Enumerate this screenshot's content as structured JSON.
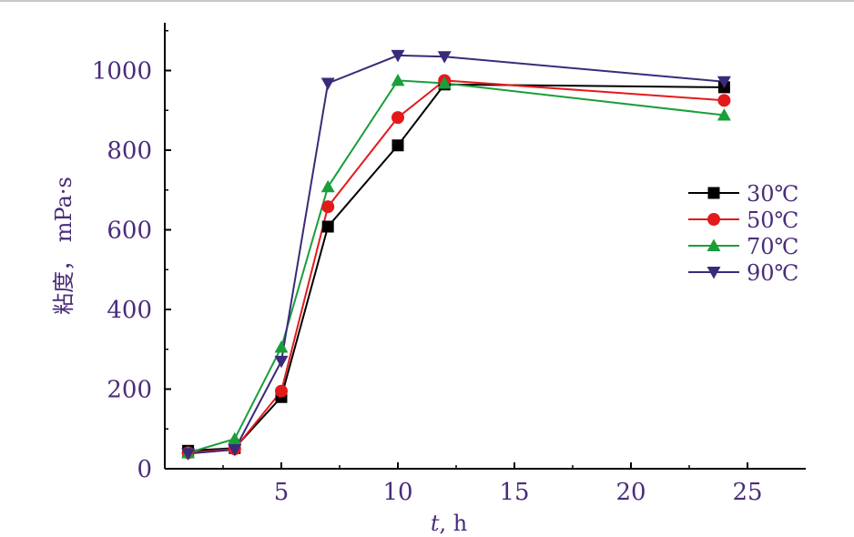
{
  "chart_data": {
    "type": "line",
    "xlabel": "t, h",
    "xlabel_italic": "t",
    "xlabel_rest": ", h",
    "ylabel": "粘度， mPa·s",
    "xlim": [
      0,
      27.5
    ],
    "ylim": [
      0,
      1120
    ],
    "xticks": [
      5,
      10,
      15,
      20,
      25
    ],
    "xtick_labels": [
      "5",
      "10",
      "15",
      "20",
      "25"
    ],
    "yticks": [
      0,
      200,
      400,
      600,
      800,
      1000
    ],
    "ytick_labels": [
      "0",
      "200",
      "400",
      "600",
      "800",
      "1000"
    ],
    "grid": false,
    "legend_position": "right",
    "series": [
      {
        "name": "30℃",
        "color": "#000000",
        "marker": "square",
        "x": [
          1,
          3,
          5,
          7,
          10,
          12,
          24
        ],
        "y": [
          45,
          52,
          180,
          608,
          812,
          965,
          958
        ]
      },
      {
        "name": "50℃",
        "color": "#e31a1c",
        "marker": "circle",
        "x": [
          1,
          3,
          5,
          7,
          10,
          12,
          24
        ],
        "y": [
          40,
          50,
          195,
          658,
          882,
          975,
          925
        ]
      },
      {
        "name": "70℃",
        "color": "#1a9e3a",
        "marker": "triangle-up",
        "x": [
          1,
          3,
          5,
          7,
          10,
          12,
          24
        ],
        "y": [
          40,
          75,
          305,
          708,
          975,
          968,
          888
        ]
      },
      {
        "name": "90℃",
        "color": "#3b2a7a",
        "marker": "triangle-down",
        "x": [
          1,
          3,
          5,
          7,
          10,
          12,
          24
        ],
        "y": [
          38,
          48,
          270,
          968,
          1038,
          1035,
          972
        ]
      }
    ]
  }
}
